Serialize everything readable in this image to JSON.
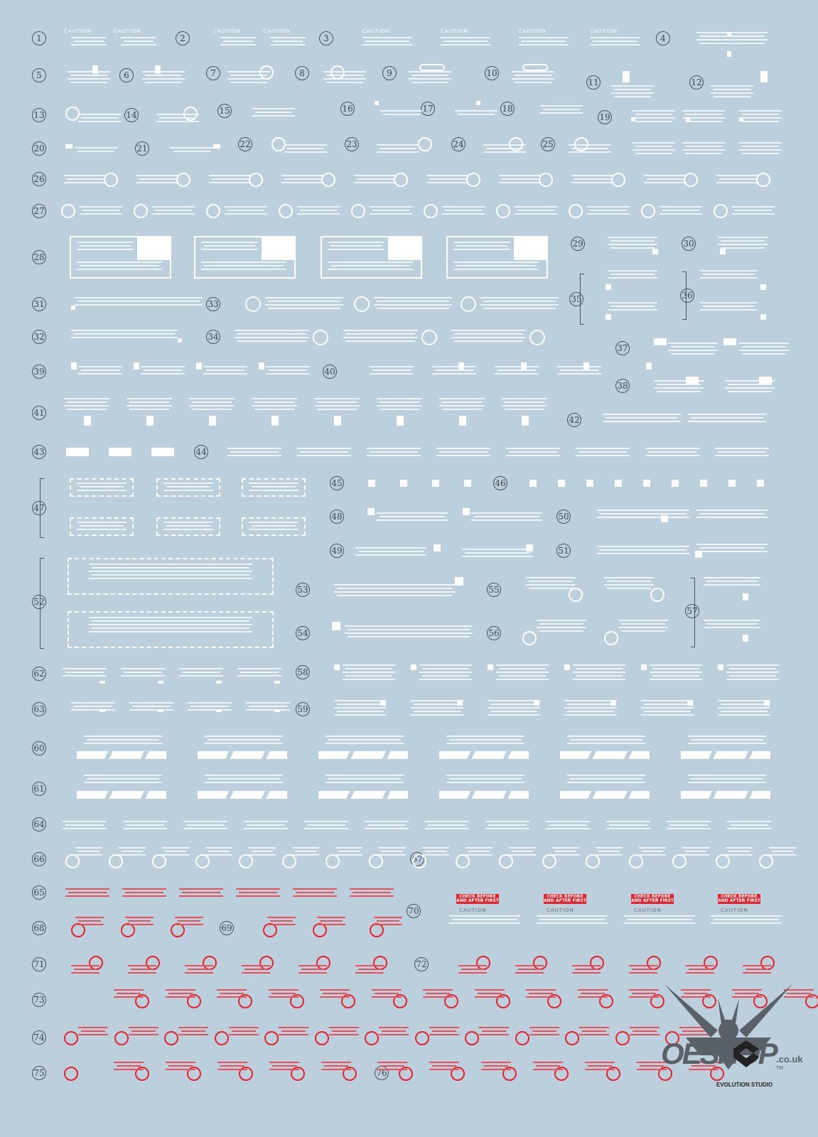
{
  "sheet": {
    "background_color": "#bccfdc",
    "decal_white": "#ffffff",
    "decal_red": "#e8202a",
    "marker_color": "#4a525a",
    "markers": [
      "1",
      "2",
      "3",
      "4",
      "5",
      "6",
      "7",
      "8",
      "9",
      "10",
      "11",
      "12",
      "13",
      "14",
      "15",
      "16",
      "17",
      "18",
      "19",
      "20",
      "21",
      "22",
      "23",
      "24",
      "25",
      "26",
      "27",
      "28",
      "29",
      "30",
      "31",
      "32",
      "33",
      "34",
      "35",
      "36",
      "37",
      "38",
      "39",
      "40",
      "41",
      "42",
      "43",
      "44",
      "45",
      "46",
      "47",
      "48",
      "49",
      "50",
      "51",
      "52",
      "53",
      "54",
      "55",
      "56",
      "57",
      "58",
      "59",
      "60",
      "61",
      "62",
      "63",
      "64",
      "65",
      "66",
      "67",
      "68",
      "69",
      "70",
      "71",
      "72",
      "73",
      "74",
      "75",
      "76"
    ],
    "caution_label": "CAUTION",
    "badge_label": "CHECK BEFORE AND AFTER FIRST"
  },
  "branding": {
    "watermark": "OESHOP",
    "watermark_suffix": ".co.uk",
    "trademark": "TM",
    "studio": "EVOLUTION STUDIO"
  }
}
